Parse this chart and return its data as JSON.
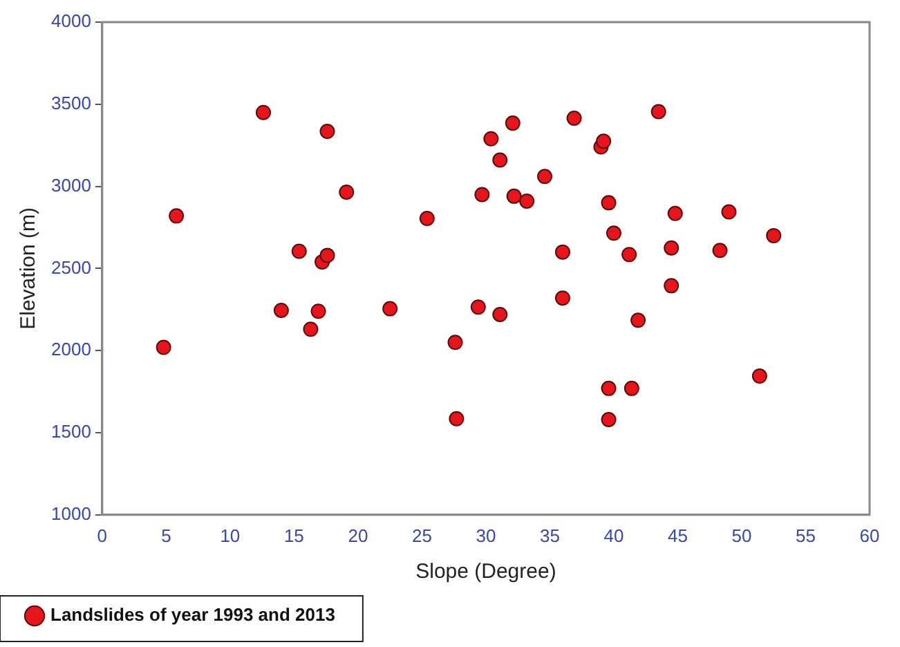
{
  "chart_data": {
    "type": "scatter",
    "xlabel": "Slope (Degree)",
    "ylabel": "Elevation (m)",
    "xlim": [
      0,
      60
    ],
    "xticks": [
      0,
      5,
      10,
      15,
      20,
      25,
      30,
      35,
      40,
      45,
      50,
      55,
      60
    ],
    "ylim": [
      1000,
      4000
    ],
    "yticks": [
      1000,
      1500,
      2000,
      2500,
      3000,
      3500,
      4000
    ],
    "grid": false,
    "legend": "bottom left",
    "marker": "circle",
    "series": [
      {
        "name": "Landslides of year 1993 and 2013",
        "color": "#e8141c",
        "x": [
          4.8,
          5.8,
          12.6,
          14,
          15.4,
          16.3,
          16.9,
          17.2,
          17.6,
          17.6,
          19.1,
          22.5,
          25.4,
          27.6,
          27.7,
          29.4,
          29.7,
          30.4,
          31.1,
          31.1,
          32.1,
          32.2,
          33.2,
          34.6,
          36,
          36,
          36.9,
          39,
          39.2,
          39.6,
          39.6,
          39.6,
          40,
          41.2,
          41.4,
          41.9,
          43.5,
          44.5,
          44.5,
          44.8,
          48.3,
          49,
          51.4,
          52.5
        ],
        "values": [
          2020,
          2820,
          3450,
          2245,
          2605,
          2130,
          2240,
          2540,
          2580,
          3335,
          2965,
          2255,
          2805,
          2050,
          1585,
          2265,
          2950,
          3290,
          2220,
          3160,
          3385,
          2940,
          2910,
          3060,
          2600,
          2320,
          3415,
          3240,
          3275,
          2900,
          1770,
          1580,
          2715,
          2585,
          1770,
          2185,
          3455,
          2625,
          2395,
          2835,
          2610,
          2845,
          1845,
          2700
        ]
      }
    ]
  }
}
